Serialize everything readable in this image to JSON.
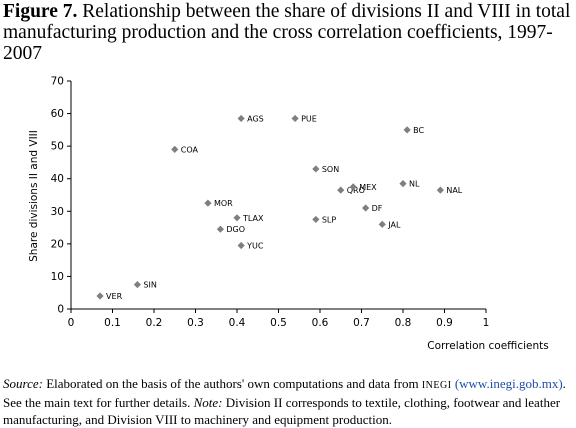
{
  "title": {
    "figure_label": "Figure 7.",
    "text": " Relationship between the share of divisions II and VIII in total manufacturing production and the cross correlation coefficients, 1997-2007"
  },
  "chart_data": {
    "type": "scatter",
    "title": "Figure 7. Relationship between the share of divisions II and VIII in total manufacturing production and the cross correlation coefficients, 1997-2007",
    "xlabel": "Correlation coefficients",
    "ylabel": "Share divisions II and VIII",
    "xlim": [
      0,
      1
    ],
    "ylim": [
      0,
      70
    ],
    "xticks": [
      0,
      0.1,
      0.2,
      0.3,
      0.4,
      0.5,
      0.6,
      0.7,
      0.8,
      0.9,
      1
    ],
    "xtick_labels": [
      "0",
      "0.1",
      "0.2",
      "0.3",
      "0.4",
      "0.5",
      "0.6",
      "0.7",
      "0.8",
      "0.9",
      "1"
    ],
    "yticks": [
      0,
      10,
      20,
      30,
      40,
      50,
      60,
      70
    ],
    "ytick_labels": [
      "0",
      "10",
      "20",
      "30",
      "40",
      "50",
      "60",
      "70"
    ],
    "grid": false,
    "marker_color": "#7f7f7f",
    "points": [
      {
        "label": "VER",
        "x": 0.07,
        "y": 4
      },
      {
        "label": "SIN",
        "x": 0.16,
        "y": 7.5
      },
      {
        "label": "COA",
        "x": 0.25,
        "y": 49
      },
      {
        "label": "MOR",
        "x": 0.33,
        "y": 32.5
      },
      {
        "label": "DGO",
        "x": 0.36,
        "y": 24.5
      },
      {
        "label": "AGS",
        "x": 0.41,
        "y": 58.5
      },
      {
        "label": "TLAX",
        "x": 0.4,
        "y": 28
      },
      {
        "label": "YUC",
        "x": 0.41,
        "y": 19.5
      },
      {
        "label": "PUE",
        "x": 0.54,
        "y": 58.5
      },
      {
        "label": "SON",
        "x": 0.59,
        "y": 43
      },
      {
        "label": "SLP",
        "x": 0.59,
        "y": 27.5
      },
      {
        "label": "QRO",
        "x": 0.65,
        "y": 36.5
      },
      {
        "label": "MEX",
        "x": 0.68,
        "y": 37.5
      },
      {
        "label": "DF",
        "x": 0.71,
        "y": 31
      },
      {
        "label": "JAL",
        "x": 0.75,
        "y": 26
      },
      {
        "label": "NL",
        "x": 0.8,
        "y": 38.5
      },
      {
        "label": "BC",
        "x": 0.81,
        "y": 55
      },
      {
        "label": "NAL",
        "x": 0.89,
        "y": 36.5
      }
    ]
  },
  "footnote": {
    "source_label": "Source:",
    "source_text": " Elaborated on the basis of the authors' own computations and data from ",
    "inegi": "INEGI",
    "link_text": "(www.inegi.gob.mx)",
    "after_link": ". See the main text for further details. ",
    "note_label": "Note:",
    "note_text": " Division II corresponds to textile, clothing, footwear and leather manufacturing, and Division VIII to machinery and equipment production."
  }
}
